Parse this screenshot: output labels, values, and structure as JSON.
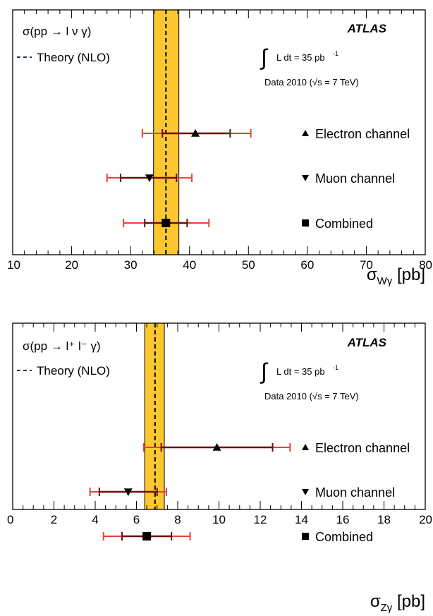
{
  "colors": {
    "band": "#fdc82f",
    "band_edge": "#000000",
    "theory_line": "#0a1a33",
    "stat_error": "#6b0d0d",
    "total_error": "#e8413a",
    "marker": "#000000"
  },
  "chart_data": [
    {
      "type": "scatter",
      "subtype": "cross-section summary with horizontal error bars",
      "legend_process": "σ(pp → l ν γ)",
      "legend_theory": "Theory (NLO)",
      "experiment": "ATLAS",
      "lumi_prefix": "∫",
      "lumi_text": "L dt = 35 pb",
      "lumi_exp": "-1",
      "data_text": "Data 2010 (√s = 7 TeV)",
      "xlabel": "σ",
      "xlabel_sub": "Wγ",
      "xlabel_unit": " [pb]",
      "xlim": [
        10,
        80
      ],
      "x_major_ticks": [
        10,
        20,
        30,
        40,
        50,
        60,
        70,
        80
      ],
      "x_tick_labels": [
        "10",
        "20",
        "30",
        "40",
        "50",
        "60",
        "70",
        "80"
      ],
      "x_minor_step": 2,
      "theory": {
        "value": 36.0,
        "band": [
          33.9,
          38.2
        ]
      },
      "points": [
        {
          "label": "Electron channel",
          "marker": "triangle-up",
          "value": 41.0,
          "stat": [
            35.4,
            46.9
          ],
          "total": [
            32.0,
            50.4
          ]
        },
        {
          "label": "Muon channel",
          "marker": "triangle-down",
          "value": 33.2,
          "stat": [
            28.3,
            37.8
          ],
          "total": [
            26.0,
            40.4
          ]
        },
        {
          "label": "Combined",
          "marker": "square",
          "value": 36.0,
          "stat": [
            32.4,
            39.6
          ],
          "total": [
            28.8,
            43.3
          ]
        }
      ],
      "grid": false
    },
    {
      "type": "scatter",
      "subtype": "cross-section summary with horizontal error bars",
      "legend_process": "σ(pp → l⁺ l⁻ γ)",
      "legend_theory": "Theory (NLO)",
      "experiment": "ATLAS",
      "lumi_prefix": "∫",
      "lumi_text": "L dt = 35 pb",
      "lumi_exp": "-1",
      "data_text": "Data 2010 (√s = 7 TeV)",
      "xlabel": "σ",
      "xlabel_sub": "Zγ",
      "xlabel_unit": " [pb]",
      "xlim": [
        0,
        20
      ],
      "x_major_ticks": [
        0,
        2,
        4,
        6,
        8,
        10,
        12,
        14,
        16,
        18,
        20
      ],
      "x_tick_labels": [
        "0",
        "2",
        "4",
        "6",
        "8",
        "10",
        "12",
        "14",
        "16",
        "18",
        "20"
      ],
      "x_minor_step": 0.5,
      "theory": {
        "value": 6.9,
        "band": [
          6.4,
          7.35
        ]
      },
      "points": [
        {
          "label": "Electron channel",
          "marker": "triangle-up",
          "value": 9.9,
          "stat": [
            7.2,
            12.6
          ],
          "total": [
            6.35,
            13.45
          ]
        },
        {
          "label": "Muon channel",
          "marker": "triangle-down",
          "value": 5.6,
          "stat": [
            4.2,
            7.0
          ],
          "total": [
            3.75,
            7.45
          ]
        },
        {
          "label": "Combined",
          "marker": "square",
          "value": 6.5,
          "stat": [
            5.3,
            7.7
          ],
          "total": [
            4.4,
            8.6
          ]
        }
      ],
      "grid": false
    }
  ]
}
